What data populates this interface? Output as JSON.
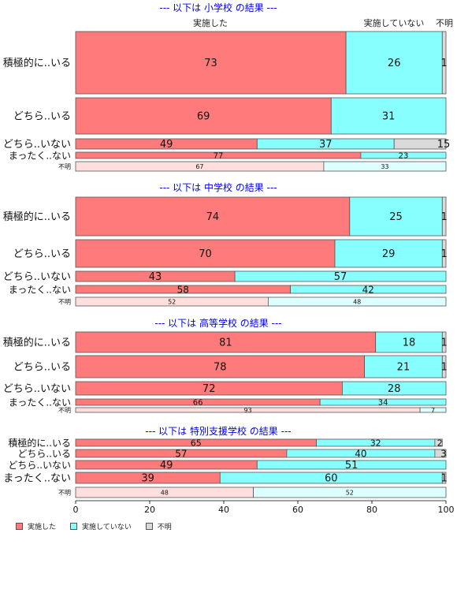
{
  "colors": {
    "done": "#ff7a7a",
    "notdone": "#88ffff",
    "unknown": "#d9d9d9",
    "unknown_row_done": "#ffdede",
    "unknown_row_notdone": "#deffff",
    "title": "#0000ee"
  },
  "column_headers": [
    "実施した",
    "実施していない",
    "不明"
  ],
  "legend": [
    "実施した",
    "実施していない",
    "不明"
  ],
  "chart_data": {
    "type": "bar",
    "orientation": "horizontal-stacked",
    "xlim": [
      0,
      100
    ],
    "xticks": [
      0,
      20,
      40,
      60,
      80,
      100
    ],
    "series_names": [
      "実施した",
      "実施していない",
      "不明"
    ],
    "panels": [
      {
        "title": "--- 以下は 小学校 の結果 ---",
        "rows": [
          {
            "label": "積極的に..いる",
            "values": [
              73,
              26,
              1
            ]
          },
          {
            "label": "どちら..いる",
            "values": [
              69,
              31,
              0
            ]
          },
          {
            "label": "どちら..いない",
            "values": [
              49,
              37,
              15
            ]
          },
          {
            "label": "まったく..ない",
            "values": [
              77,
              23,
              0
            ]
          },
          {
            "label": "不明",
            "values": [
              67,
              33,
              0
            ]
          }
        ]
      },
      {
        "title": "--- 以下は 中学校 の結果 ---",
        "rows": [
          {
            "label": "積極的に..いる",
            "values": [
              74,
              25,
              1
            ]
          },
          {
            "label": "どちら..いる",
            "values": [
              70,
              29,
              1
            ]
          },
          {
            "label": "どちら..いない",
            "values": [
              43,
              57,
              0
            ]
          },
          {
            "label": "まったく..ない",
            "values": [
              58,
              42,
              0
            ]
          },
          {
            "label": "不明",
            "values": [
              52,
              48,
              0
            ]
          }
        ]
      },
      {
        "title": "--- 以下は 高等学校 の結果 ---",
        "rows": [
          {
            "label": "積極的に..いる",
            "values": [
              81,
              18,
              1
            ]
          },
          {
            "label": "どちら..いる",
            "values": [
              78,
              21,
              1
            ]
          },
          {
            "label": "どちら..いない",
            "values": [
              72,
              28,
              0
            ]
          },
          {
            "label": "まったく..ない",
            "values": [
              66,
              34,
              0
            ]
          },
          {
            "label": "不明",
            "values": [
              93,
              7,
              0
            ]
          }
        ]
      },
      {
        "title": "--- 以下は 特別支援学校 の結果 ---",
        "rows": [
          {
            "label": "積極的に..いる",
            "values": [
              65,
              32,
              2
            ]
          },
          {
            "label": "どちら..いる",
            "values": [
              57,
              40,
              3
            ]
          },
          {
            "label": "どちら..いない",
            "values": [
              49,
              51,
              0
            ]
          },
          {
            "label": "まったく..ない",
            "values": [
              39,
              60,
              1
            ]
          },
          {
            "label": "不明",
            "values": [
              48,
              52,
              0
            ]
          }
        ]
      }
    ]
  }
}
